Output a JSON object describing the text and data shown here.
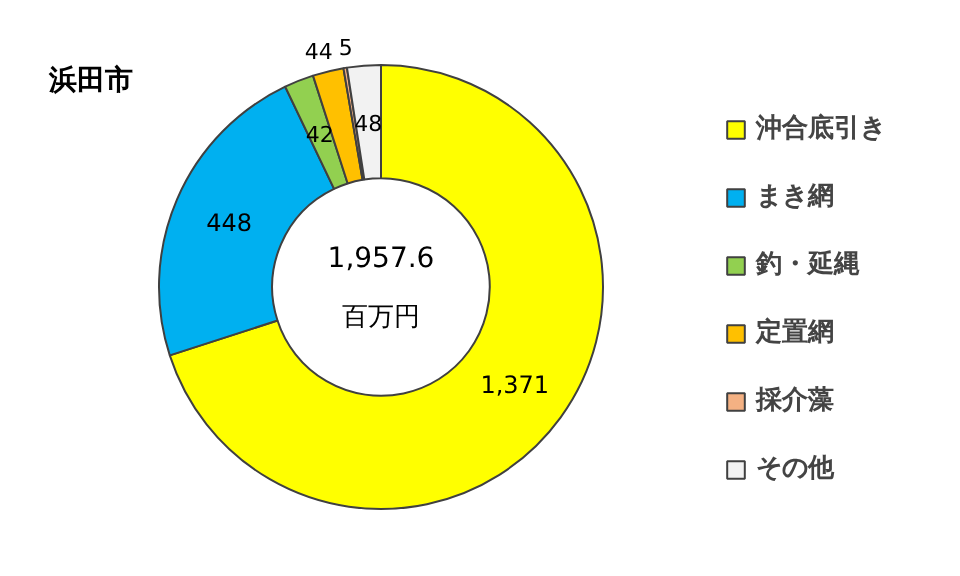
{
  "chart_data": {
    "type": "donut",
    "title": "浜田市",
    "categories": [
      "沖合底引き",
      "まき網",
      "釣・延縄",
      "定置網",
      "採介藻",
      "その他"
    ],
    "values": [
      1371,
      448,
      42,
      44,
      5,
      48
    ],
    "colors": [
      "#ffff00",
      "#00b0f0",
      "#92d050",
      "#ffc000",
      "#f4b183",
      "#f2f2f2"
    ],
    "value_labels": [
      "1,371",
      "448",
      "42",
      "44",
      "5",
      "48"
    ],
    "annotations": [
      "1,957.6",
      "百万円"
    ],
    "legend": "right"
  }
}
